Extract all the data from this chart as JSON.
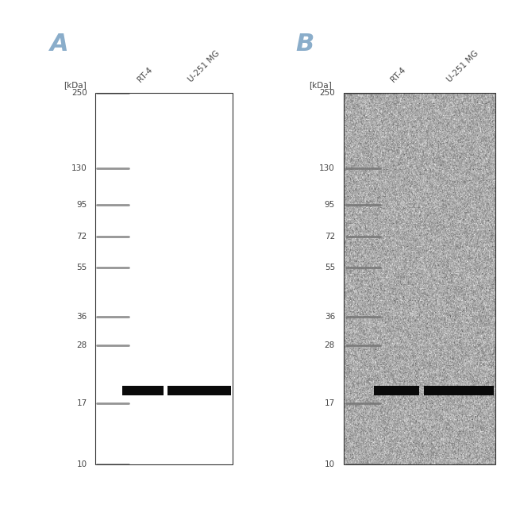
{
  "fig_width": 6.5,
  "fig_height": 6.5,
  "background_color": "#ffffff",
  "ladder_mws": [
    250,
    130,
    95,
    72,
    55,
    36,
    28,
    17,
    10
  ],
  "panel_A": {
    "label": "A",
    "label_color": "#8aadca",
    "box_bg": "#ffffff",
    "noise_bg": false,
    "noise_alpha": 0.0,
    "band_mw": 19.0,
    "band_color": "#0a0a0a",
    "ladder_color": "#888888",
    "text_color": "#444444",
    "kdal_label": "[kDa]"
  },
  "panel_B": {
    "label": "B",
    "label_color": "#8aadca",
    "box_bg": "#e0e0e0",
    "noise_bg": true,
    "noise_alpha": 0.9,
    "band_mw": 19.0,
    "band_color": "#0a0a0a",
    "ladder_color": "#777777",
    "text_color": "#444444",
    "kdal_label": "[kDa]"
  }
}
